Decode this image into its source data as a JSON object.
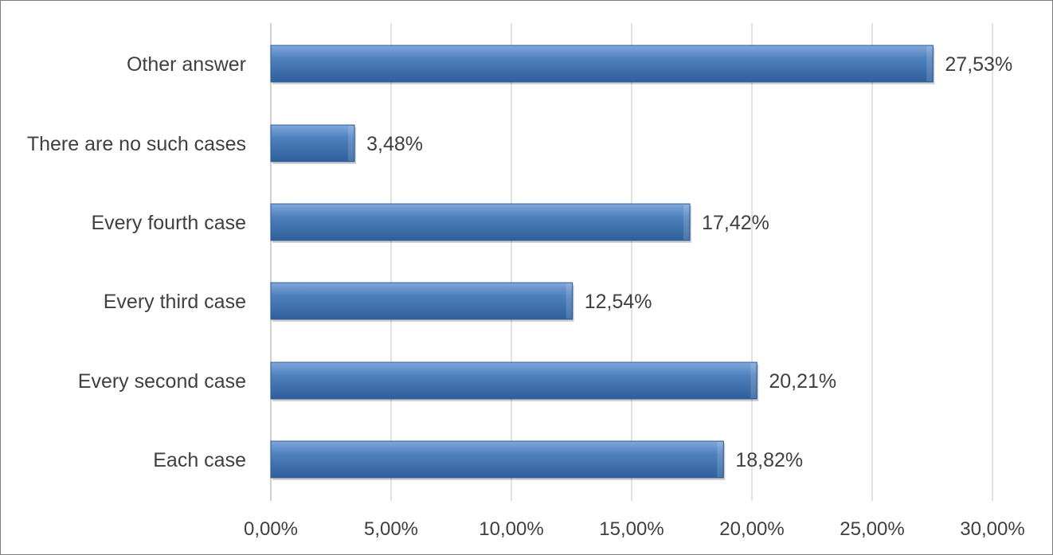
{
  "chart_data": {
    "type": "bar",
    "orientation": "horizontal",
    "categories": [
      "Other answer",
      "There are no such cases",
      "Every fourth case",
      "Every third case",
      "Every second case",
      "Each case"
    ],
    "values": [
      27.53,
      3.48,
      17.42,
      12.54,
      20.21,
      18.82
    ],
    "value_labels": [
      "27,53%",
      "3,48%",
      "17,42%",
      "12,54%",
      "20,21%",
      "18,82%"
    ],
    "x_ticks": [
      0,
      5,
      10,
      15,
      20,
      25,
      30
    ],
    "x_tick_labels": [
      "0,00%",
      "5,00%",
      "10,00%",
      "15,00%",
      "20,00%",
      "25,00%",
      "30,00%"
    ],
    "xlim": [
      0,
      30
    ],
    "grid": "vertical",
    "legend": "none",
    "title": "",
    "xlabel": "",
    "ylabel": "",
    "colors": {
      "bar_light": "#7fa7dc",
      "bar_mid": "#4f81bd",
      "bar_dark": "#2f5f9a",
      "gridline": "#d9d9d9",
      "axis": "#bfbfbf",
      "text": "#404040"
    }
  }
}
